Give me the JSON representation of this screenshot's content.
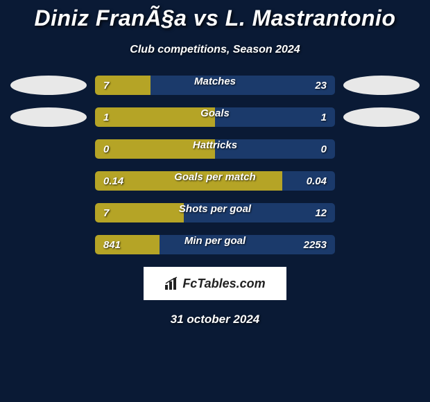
{
  "title": "Diniz FranÃ§a vs L. Mastrantonio",
  "subtitle": "Club competitions, Season 2024",
  "date_text": "31 october 2024",
  "logo_text": "FcTables.com",
  "colors": {
    "background": "#0a1a35",
    "bar_left": "#b5a426",
    "bar_right": "#1b3a6b",
    "ellipse_left": "#e8e8e8",
    "ellipse_right": "#e8e8e8"
  },
  "stats": [
    {
      "label": "Matches",
      "left_val": "7",
      "right_val": "23",
      "left_pct": 23,
      "show_ellipses": true
    },
    {
      "label": "Goals",
      "left_val": "1",
      "right_val": "1",
      "left_pct": 50,
      "show_ellipses": true
    },
    {
      "label": "Hattricks",
      "left_val": "0",
      "right_val": "0",
      "left_pct": 50,
      "show_ellipses": false
    },
    {
      "label": "Goals per match",
      "left_val": "0.14",
      "right_val": "0.04",
      "left_pct": 78,
      "show_ellipses": false
    },
    {
      "label": "Shots per goal",
      "left_val": "7",
      "right_val": "12",
      "left_pct": 37,
      "show_ellipses": false
    },
    {
      "label": "Min per goal",
      "left_val": "841",
      "right_val": "2253",
      "left_pct": 27,
      "show_ellipses": false
    }
  ]
}
